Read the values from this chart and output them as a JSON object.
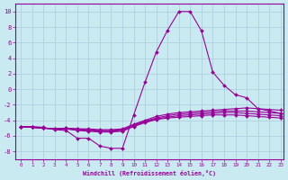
{
  "xlabel": "Windchill (Refroidissement éolien,°C)",
  "background_color": "#c8eaf0",
  "grid_color": "#aaccdd",
  "line_color": "#990099",
  "xlim": [
    -0.5,
    23.3
  ],
  "ylim": [
    -9,
    11
  ],
  "xticks": [
    0,
    1,
    2,
    3,
    4,
    5,
    6,
    7,
    8,
    9,
    10,
    11,
    12,
    13,
    14,
    15,
    16,
    17,
    18,
    19,
    20,
    21,
    22,
    23
  ],
  "yticks": [
    -8,
    -6,
    -4,
    -2,
    0,
    2,
    4,
    6,
    8,
    10
  ],
  "main_curve": [
    -4.8,
    -4.8,
    -4.9,
    -5.2,
    -5.3,
    -6.3,
    -6.3,
    -7.3,
    -7.6,
    -7.6,
    -3.3,
    0.9,
    4.8,
    7.6,
    10.0,
    10.0,
    7.5,
    2.2,
    0.5,
    -0.7,
    -1.1,
    -2.5,
    -2.8,
    -3.1
  ],
  "flat_curves": [
    [
      -4.8,
      -4.9,
      -5.0,
      -5.1,
      -5.0,
      -5.1,
      -5.1,
      -5.2,
      -5.2,
      -5.1,
      -4.5,
      -4.0,
      -3.5,
      -3.2,
      -3.0,
      -2.9,
      -2.8,
      -2.7,
      -2.6,
      -2.5,
      -2.4,
      -2.5,
      -2.6,
      -2.7
    ],
    [
      -4.8,
      -4.9,
      -5.0,
      -5.1,
      -5.0,
      -5.1,
      -5.2,
      -5.3,
      -5.3,
      -5.2,
      -4.6,
      -4.1,
      -3.7,
      -3.4,
      -3.2,
      -3.1,
      -3.0,
      -2.9,
      -2.8,
      -2.8,
      -2.8,
      -2.9,
      -3.0,
      -3.1
    ],
    [
      -4.8,
      -4.9,
      -5.0,
      -5.1,
      -5.1,
      -5.2,
      -5.3,
      -5.4,
      -5.4,
      -5.3,
      -4.7,
      -4.2,
      -3.8,
      -3.6,
      -3.4,
      -3.3,
      -3.2,
      -3.1,
      -3.0,
      -3.0,
      -3.1,
      -3.2,
      -3.3,
      -3.4
    ],
    [
      -4.8,
      -4.9,
      -5.0,
      -5.1,
      -5.1,
      -5.3,
      -5.4,
      -5.5,
      -5.5,
      -5.4,
      -4.8,
      -4.3,
      -3.9,
      -3.7,
      -3.6,
      -3.5,
      -3.4,
      -3.3,
      -3.3,
      -3.3,
      -3.4,
      -3.5,
      -3.6,
      -3.7
    ]
  ]
}
